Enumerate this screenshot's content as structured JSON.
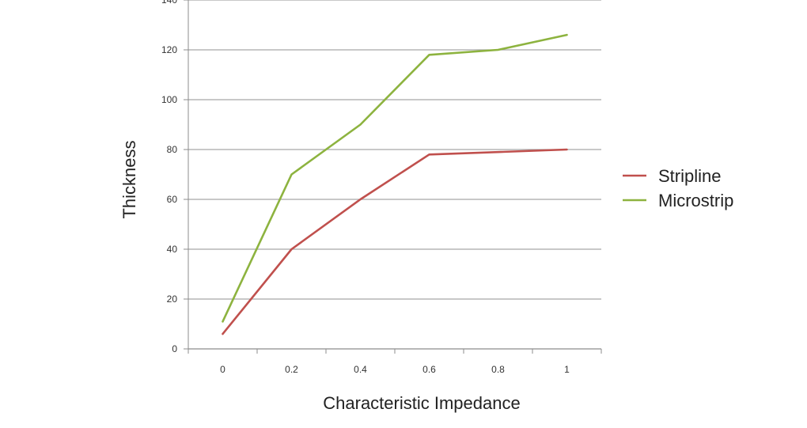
{
  "chart_data": {
    "type": "line",
    "title": "",
    "xlabel": "Characteristic Impedance",
    "ylabel": "Thickness",
    "categories": [
      "0",
      "0.2",
      "0.4",
      "0.6",
      "0.8",
      "1"
    ],
    "x": [
      0,
      0.2,
      0.4,
      0.6,
      0.8,
      1
    ],
    "ylim": [
      0,
      140
    ],
    "yticks": [
      0,
      20,
      40,
      60,
      80,
      100,
      120,
      140
    ],
    "grid": "horizontal",
    "legend_position": "right",
    "series": [
      {
        "name": "Stripline",
        "color": "#c0504d",
        "values": [
          6,
          40,
          60,
          78,
          79,
          80
        ]
      },
      {
        "name": "Microstrip",
        "color": "#8db33f",
        "values": [
          11,
          70,
          90,
          118,
          120,
          126
        ]
      }
    ]
  }
}
